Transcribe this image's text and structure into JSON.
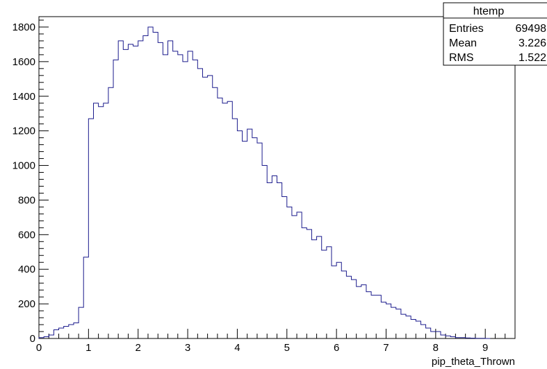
{
  "chart_data": {
    "type": "bar",
    "style": "step-histogram",
    "title": "",
    "xlabel": "pip_theta_Thrown",
    "ylabel": "",
    "xlim": [
      0,
      9.6
    ],
    "ylim": [
      0,
      1860
    ],
    "bin_width": 0.1,
    "x_ticks": [
      0,
      1,
      2,
      3,
      4,
      5,
      6,
      7,
      8,
      9
    ],
    "y_ticks": [
      0,
      200,
      400,
      600,
      800,
      1000,
      1200,
      1400,
      1600,
      1800
    ],
    "grid": false,
    "line_color": "#1a1a8c",
    "x_bin_starts": [
      0.0,
      0.1,
      0.2,
      0.3,
      0.4,
      0.5,
      0.6,
      0.7,
      0.8,
      0.9,
      1.0,
      1.1,
      1.2,
      1.3,
      1.4,
      1.5,
      1.6,
      1.7,
      1.8,
      1.9,
      2.0,
      2.1,
      2.2,
      2.3,
      2.4,
      2.5,
      2.6,
      2.7,
      2.8,
      2.9,
      3.0,
      3.1,
      3.2,
      3.3,
      3.4,
      3.5,
      3.6,
      3.7,
      3.8,
      3.9,
      4.0,
      4.1,
      4.2,
      4.3,
      4.4,
      4.5,
      4.6,
      4.7,
      4.8,
      4.9,
      5.0,
      5.1,
      5.2,
      5.3,
      5.4,
      5.5,
      5.6,
      5.7,
      5.8,
      5.9,
      6.0,
      6.1,
      6.2,
      6.3,
      6.4,
      6.5,
      6.6,
      6.7,
      6.8,
      6.9,
      7.0,
      7.1,
      7.2,
      7.3,
      7.4,
      7.5,
      7.6,
      7.7,
      7.8,
      7.9,
      8.0,
      8.1,
      8.2,
      8.3,
      8.4,
      8.5,
      8.6,
      8.7,
      8.8,
      8.9,
      9.0
    ],
    "values": [
      5,
      10,
      20,
      50,
      60,
      70,
      80,
      90,
      180,
      470,
      1270,
      1360,
      1340,
      1360,
      1450,
      1610,
      1720,
      1670,
      1700,
      1690,
      1720,
      1750,
      1800,
      1770,
      1710,
      1640,
      1720,
      1660,
      1640,
      1600,
      1660,
      1610,
      1560,
      1510,
      1520,
      1450,
      1390,
      1360,
      1370,
      1270,
      1200,
      1140,
      1210,
      1160,
      1130,
      1000,
      900,
      940,
      900,
      820,
      760,
      710,
      730,
      640,
      630,
      570,
      590,
      510,
      530,
      420,
      440,
      390,
      360,
      340,
      300,
      310,
      270,
      250,
      250,
      210,
      200,
      180,
      170,
      140,
      130,
      110,
      100,
      80,
      60,
      40,
      40,
      20,
      15,
      10,
      5,
      5,
      3,
      2,
      1,
      1,
      0
    ],
    "annotations": {
      "stats_box": {
        "title": "htemp",
        "rows": [
          {
            "label": "Entries",
            "value": "69498"
          },
          {
            "label": "Mean",
            "value": "3.226"
          },
          {
            "label": "RMS",
            "value": "1.522"
          }
        ],
        "placement": "top-right"
      }
    }
  }
}
